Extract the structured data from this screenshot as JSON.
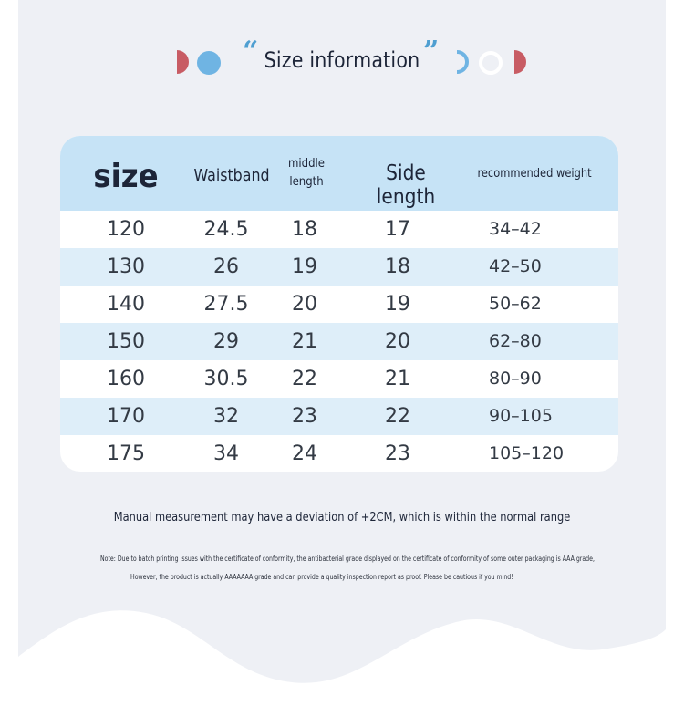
{
  "title": "Size information",
  "quote_open": "“",
  "quote_close": "”",
  "colors": {
    "background": "#eef0f5",
    "header_fill": "#c6e3f6",
    "stripe_fill": "#deeef9",
    "accent_blue": "#4f9fd1",
    "accent_red": "#c85c64",
    "text_dark": "#1d2538"
  },
  "table": {
    "headers": {
      "size": "size",
      "waistband": "Waistband",
      "middle_length_1": "middle",
      "middle_length_2": "length",
      "side_length": "Side length",
      "recommended_weight": "recommended weight"
    },
    "rows": [
      [
        "120",
        "24.5",
        "18",
        "17",
        "34–42"
      ],
      [
        "130",
        "26",
        "19",
        "18",
        "42–50"
      ],
      [
        "140",
        "27.5",
        "20",
        "19",
        "50–62"
      ],
      [
        "150",
        "29",
        "21",
        "20",
        "62–80"
      ],
      [
        "160",
        "30.5",
        "22",
        "21",
        "80–90"
      ],
      [
        "170",
        "32",
        "23",
        "22",
        "90–105"
      ],
      [
        "175",
        "34",
        "24",
        "23",
        "105–120"
      ]
    ]
  },
  "notes": {
    "main": "Manual measurement may have a deviation of +2CM, which is within the normal range",
    "small_1": "Note: Due to batch printing issues with the certificate of conformity, the antibacterial grade displayed on the certificate of conformity of some outer packaging is AAA grade,",
    "small_2": "However, the product is actually AAAAAAA grade and can provide a quality inspection report as proof. Please be cautious if you mind!"
  }
}
